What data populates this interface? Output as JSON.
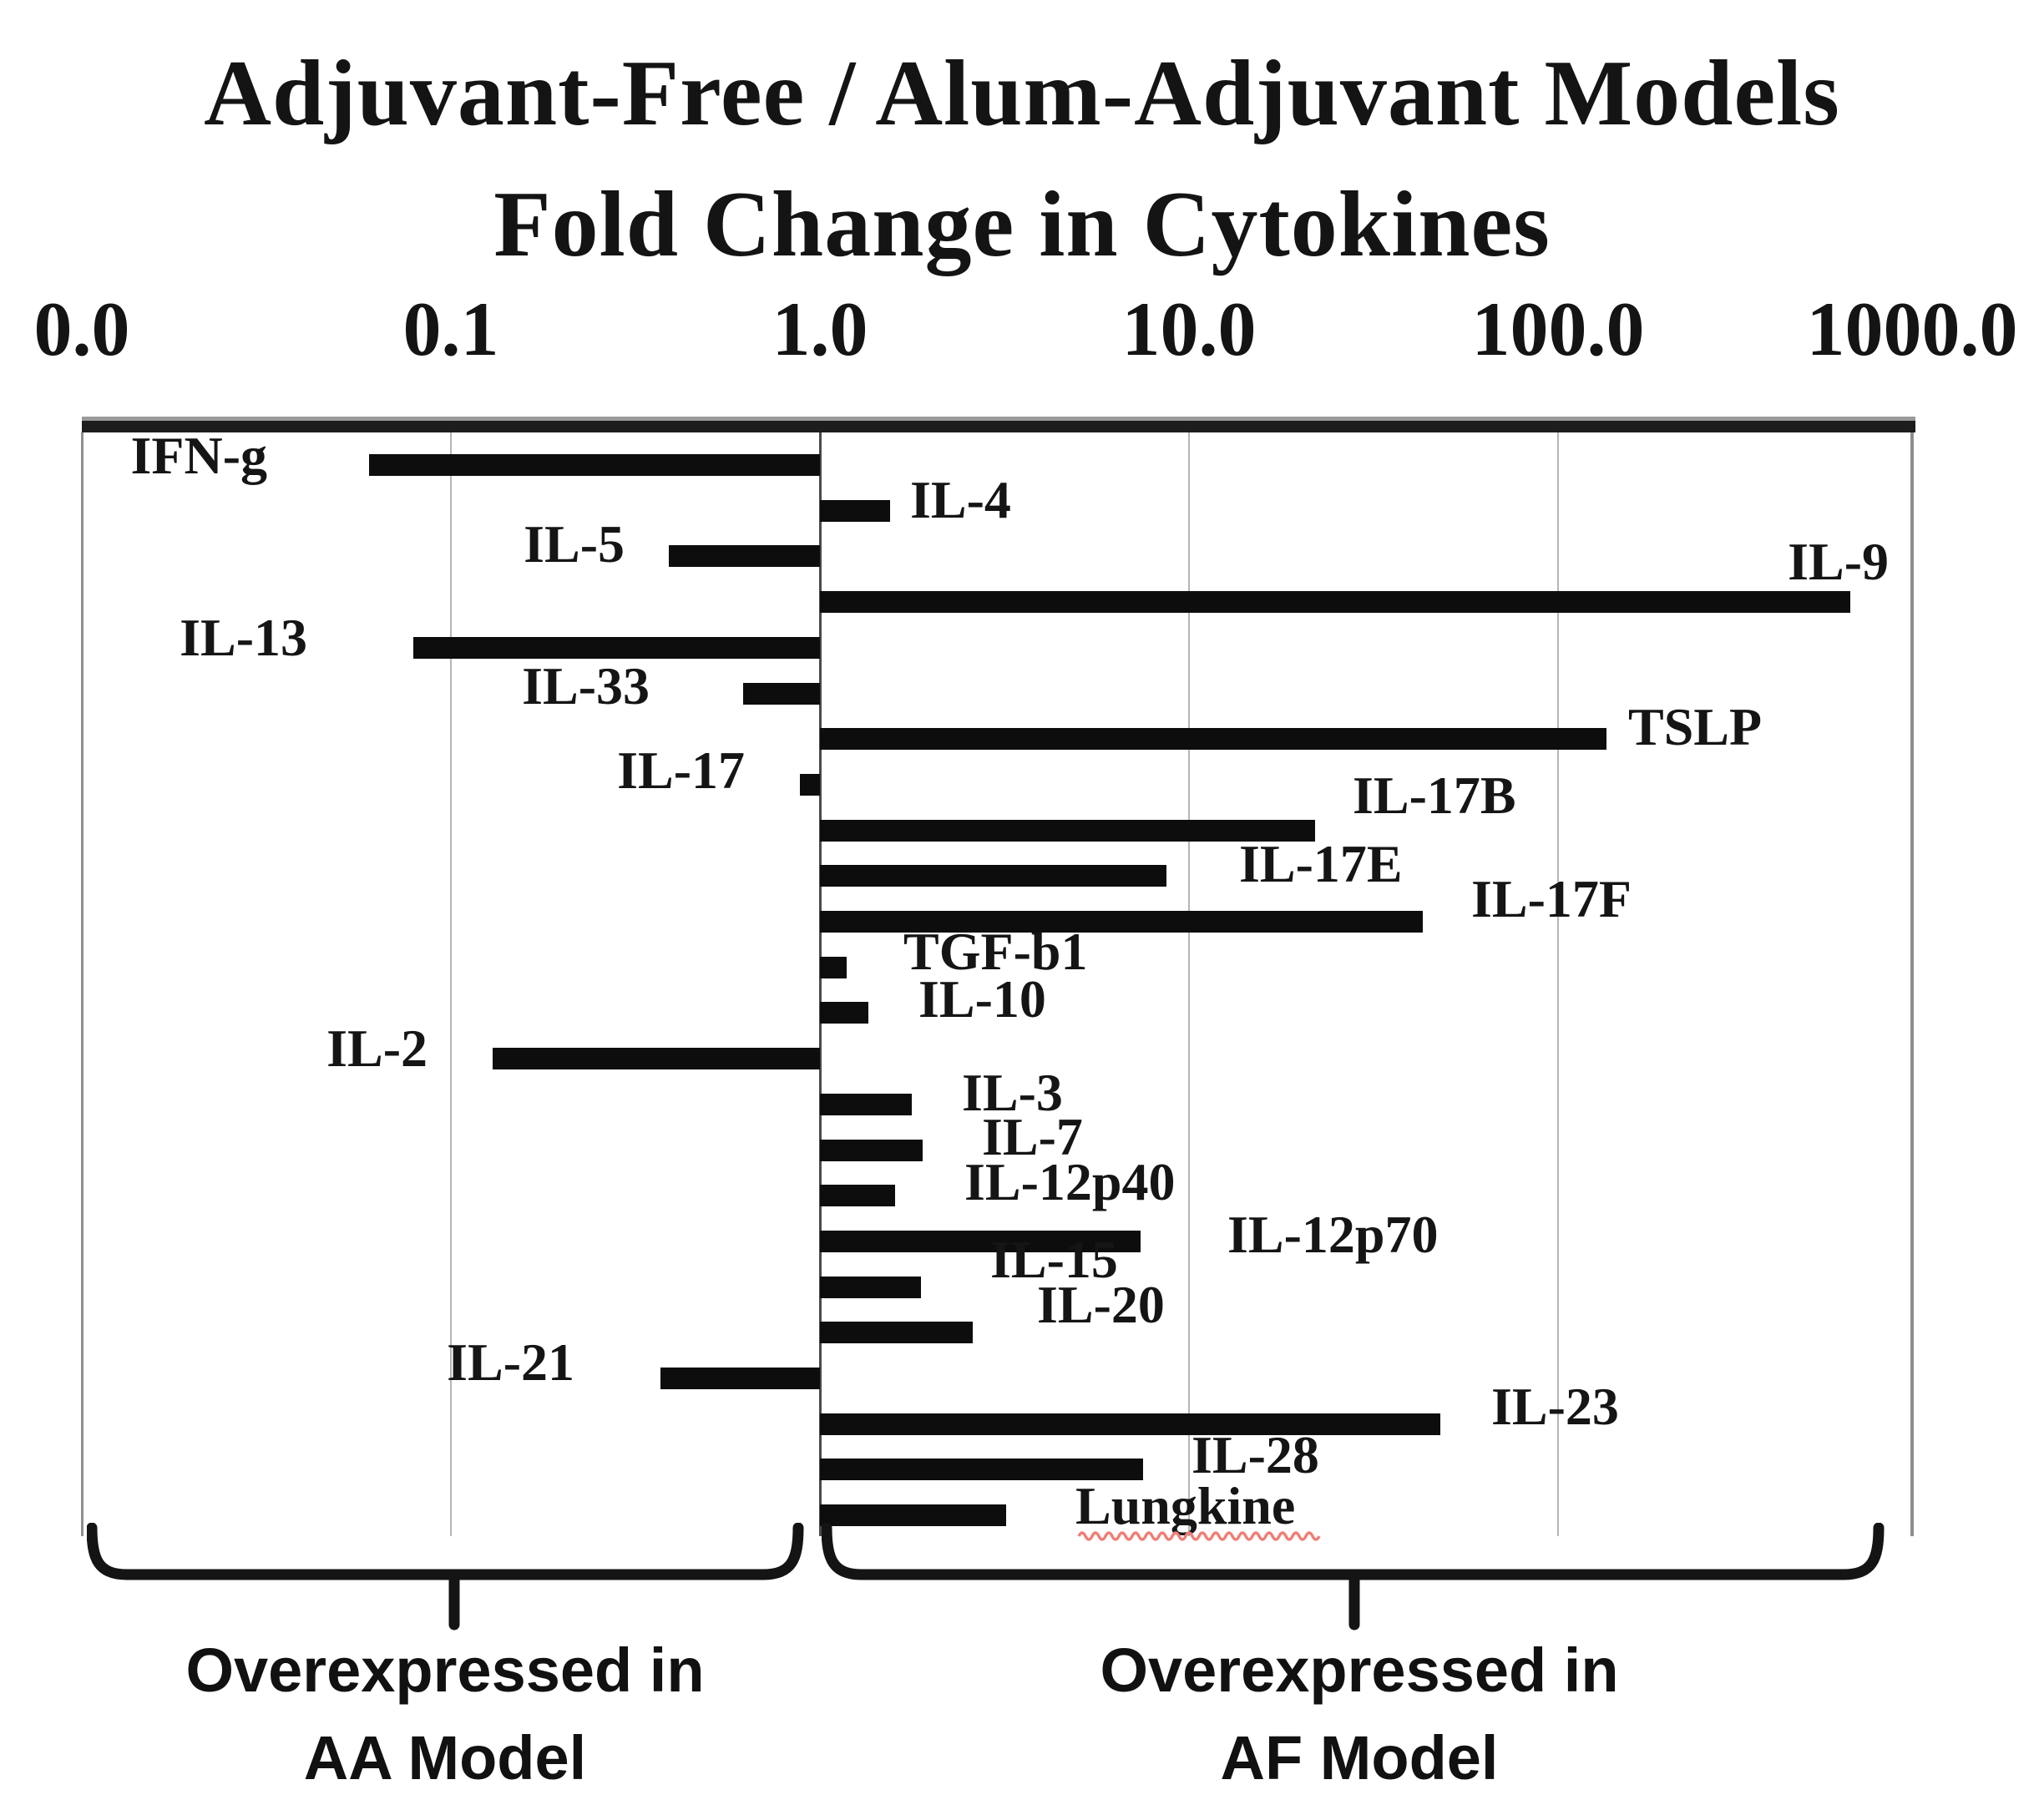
{
  "title": {
    "line1": "Adjuvant-Free / Alum-Adjuvant Models",
    "line2": "Fold Change in Cytokines"
  },
  "chart_data": {
    "type": "bar",
    "orientation": "horizontal",
    "scale": "log10",
    "baseline": 1.0,
    "xlabel": "",
    "ylabel": "",
    "axis_ticks": [
      {
        "label": "0.0",
        "value": 0
      },
      {
        "label": "0.1",
        "value": 0.1
      },
      {
        "label": "1.0",
        "value": 1
      },
      {
        "label": "10.0",
        "value": 10
      },
      {
        "label": "100.0",
        "value": 100
      },
      {
        "label": "1000.0",
        "value": 1000
      }
    ],
    "series": [
      {
        "name": "IFN-g",
        "fold_change": 0.06
      },
      {
        "name": "IL-4",
        "fold_change": 1.55
      },
      {
        "name": "IL-5",
        "fold_change": 0.39
      },
      {
        "name": "IL-9",
        "fold_change": 620
      },
      {
        "name": "IL-13",
        "fold_change": 0.079
      },
      {
        "name": "IL-33",
        "fold_change": 0.62
      },
      {
        "name": "TSLP",
        "fold_change": 135
      },
      {
        "name": "IL-17",
        "fold_change": 0.88
      },
      {
        "name": "IL-17B",
        "fold_change": 22
      },
      {
        "name": "IL-17E",
        "fold_change": 8.7
      },
      {
        "name": "IL-17F",
        "fold_change": 43
      },
      {
        "name": "TGF-b1",
        "fold_change": 1.18
      },
      {
        "name": "IL-10",
        "fold_change": 1.35
      },
      {
        "name": "IL-2",
        "fold_change": 0.13
      },
      {
        "name": "IL-3",
        "fold_change": 1.77
      },
      {
        "name": "IL-7",
        "fold_change": 1.9
      },
      {
        "name": "IL-12p40",
        "fold_change": 1.6
      },
      {
        "name": "IL-12p70",
        "fold_change": 7.4
      },
      {
        "name": "IL-15",
        "fold_change": 1.88
      },
      {
        "name": "IL-20",
        "fold_change": 2.6
      },
      {
        "name": "IL-21",
        "fold_change": 0.37
      },
      {
        "name": "IL-23",
        "fold_change": 48
      },
      {
        "name": "IL-28",
        "fold_change": 7.5
      },
      {
        "name": "Lungkine",
        "fold_change": 3.2,
        "spellcheck_underline": true
      }
    ],
    "legend_position": "none",
    "grid": true,
    "annotations": {
      "left_group_line1": "Overexpressed in",
      "left_group_line2": "AA Model",
      "right_group_line1": "Overexpressed in",
      "right_group_line2": "AF Model"
    }
  },
  "colors": {
    "bar": "#0d0d0d",
    "text": "#141414",
    "grid": "#b5b5b5",
    "baseline": "#4a4a4a",
    "side_border": "#8f8f8f",
    "top_border": "#1d1d1d",
    "brace": "#141414",
    "squiggle": "#ee7f76",
    "background": "#ffffff"
  }
}
